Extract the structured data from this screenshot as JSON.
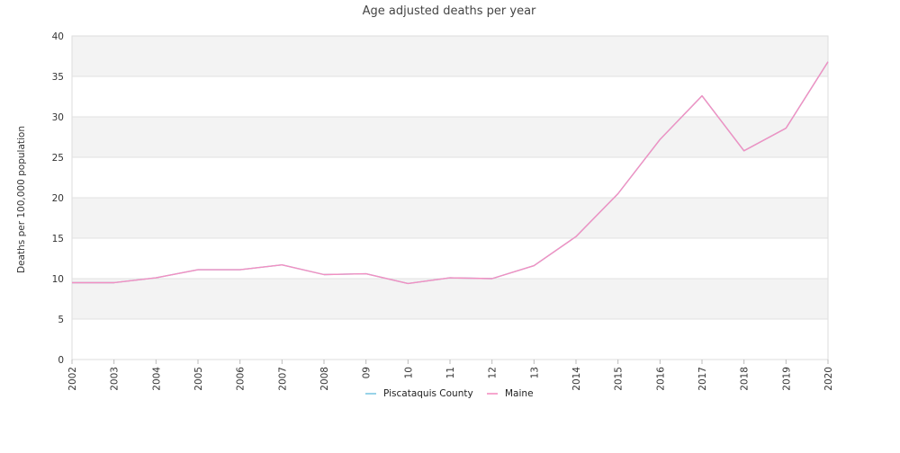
{
  "chart_data": {
    "type": "line",
    "title": "Age adjusted deaths per year",
    "ylabel": "Deaths per 100,000 population",
    "xlabel": "",
    "categories": [
      "2002",
      "2003",
      "2004",
      "2005",
      "2006",
      "2007",
      "2008",
      "09",
      "10",
      "11",
      "12",
      "13",
      "2014",
      "2015",
      "2016",
      "2017",
      "2018",
      "2019",
      "2020"
    ],
    "ylim": [
      0,
      40
    ],
    "yticks": [
      0,
      5,
      10,
      15,
      20,
      25,
      30,
      35,
      40
    ],
    "grid": true,
    "legend_position": "bottom",
    "series": [
      {
        "name": "Piscataquis County",
        "color": "#7ec8e3",
        "values": [
          9.5,
          9.5,
          10.1,
          11.1,
          11.1,
          11.7,
          10.5,
          10.6,
          9.4,
          10.1,
          10.0,
          11.6,
          15.2,
          20.5,
          27.2,
          32.6,
          25.8,
          28.6,
          36.8
        ]
      },
      {
        "name": "Maine",
        "color": "#f48fc1",
        "values": [
          9.5,
          9.5,
          10.1,
          11.1,
          11.1,
          11.7,
          10.5,
          10.6,
          9.4,
          10.1,
          10.0,
          11.6,
          15.2,
          20.5,
          27.2,
          32.6,
          25.8,
          28.6,
          36.8
        ]
      }
    ]
  }
}
